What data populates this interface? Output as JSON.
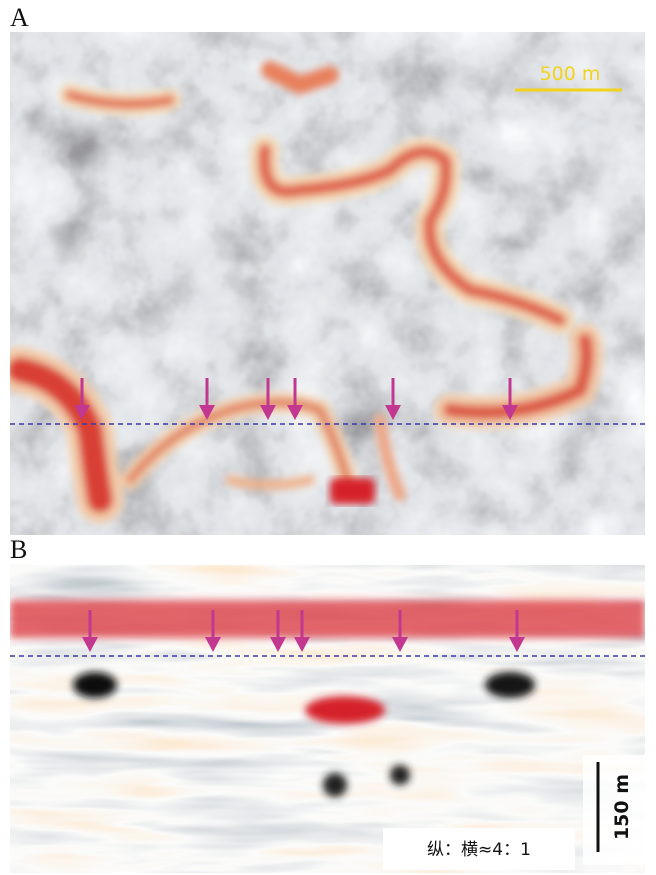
{
  "panels": [
    {
      "label": "A",
      "scale_bar": "500 m"
    },
    {
      "label": "B",
      "scale_bar": "150 m",
      "aspect_note": "纵：横≈4：1"
    }
  ]
}
